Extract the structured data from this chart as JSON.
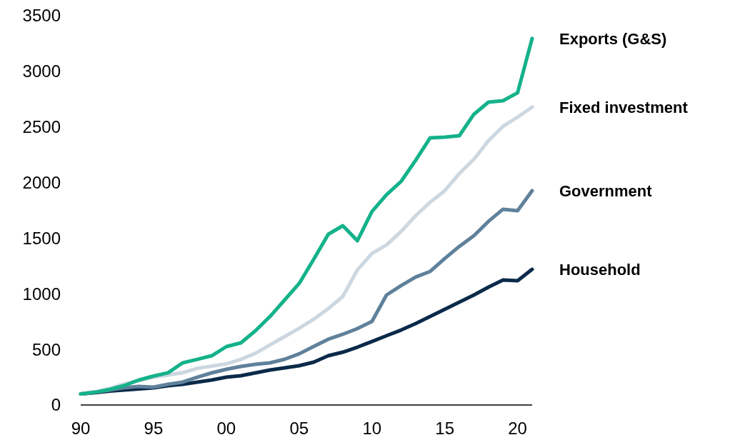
{
  "chart_data": {
    "type": "line",
    "x": [
      1990,
      1991,
      1992,
      1993,
      1994,
      1995,
      1996,
      1997,
      1998,
      1999,
      2000,
      2001,
      2002,
      2003,
      2004,
      2005,
      2006,
      2007,
      2008,
      2009,
      2010,
      2011,
      2012,
      2013,
      2014,
      2015,
      2016,
      2017,
      2018,
      2019,
      2020,
      2021
    ],
    "series": [
      {
        "name": "Exports (G&S)",
        "color": "#14b28a",
        "values": [
          100,
          115,
          140,
          175,
          225,
          260,
          290,
          379,
          410,
          443,
          525,
          559,
          668,
          796,
          944,
          1092,
          1310,
          1535,
          1612,
          1477,
          1740,
          1890,
          2010,
          2200,
          2402,
          2408,
          2421,
          2614,
          2723,
          2736,
          2807,
          3295
        ]
      },
      {
        "name": "Fixed investment",
        "color": "#cdd7e0",
        "values": [
          100,
          120,
          150,
          190,
          220,
          250,
          270,
          290,
          330,
          350,
          370,
          410,
          465,
          540,
          615,
          690,
          771,
          867,
          976,
          1214,
          1362,
          1439,
          1560,
          1702,
          1824,
          1927,
          2081,
          2209,
          2376,
          2505,
          2588,
          2678
        ]
      },
      {
        "name": "Government",
        "color": "#5f819b",
        "values": [
          100,
          115,
          135,
          155,
          167,
          161,
          186,
          206,
          250,
          289,
          321,
          347,
          366,
          379,
          411,
          460,
          527,
          591,
          636,
          687,
          751,
          989,
          1073,
          1150,
          1201,
          1317,
          1426,
          1522,
          1651,
          1760,
          1747,
          1927
        ]
      },
      {
        "name": "Household",
        "color": "#0b2a4a",
        "values": [
          100,
          110,
          125,
          135,
          145,
          154,
          173,
          186,
          206,
          225,
          250,
          263,
          289,
          315,
          334,
          353,
          385,
          443,
          475,
          520,
          571,
          623,
          674,
          732,
          796,
          861,
          925,
          989,
          1060,
          1124,
          1118,
          1220
        ]
      }
    ],
    "xlim": [
      1990,
      2021
    ],
    "xticks": [
      {
        "value": 1990,
        "label": "90"
      },
      {
        "value": 1995,
        "label": "95"
      },
      {
        "value": 2000,
        "label": "00"
      },
      {
        "value": 2005,
        "label": "05"
      },
      {
        "value": 2010,
        "label": "10"
      },
      {
        "value": 2015,
        "label": "15"
      },
      {
        "value": 2020,
        "label": "20"
      }
    ],
    "ylim": [
      0,
      3500
    ],
    "yticks": [
      0,
      500,
      1000,
      1500,
      2000,
      2500,
      3000,
      3500
    ],
    "grid": false,
    "legend": "right",
    "line_style": "solid",
    "marker": "none"
  }
}
